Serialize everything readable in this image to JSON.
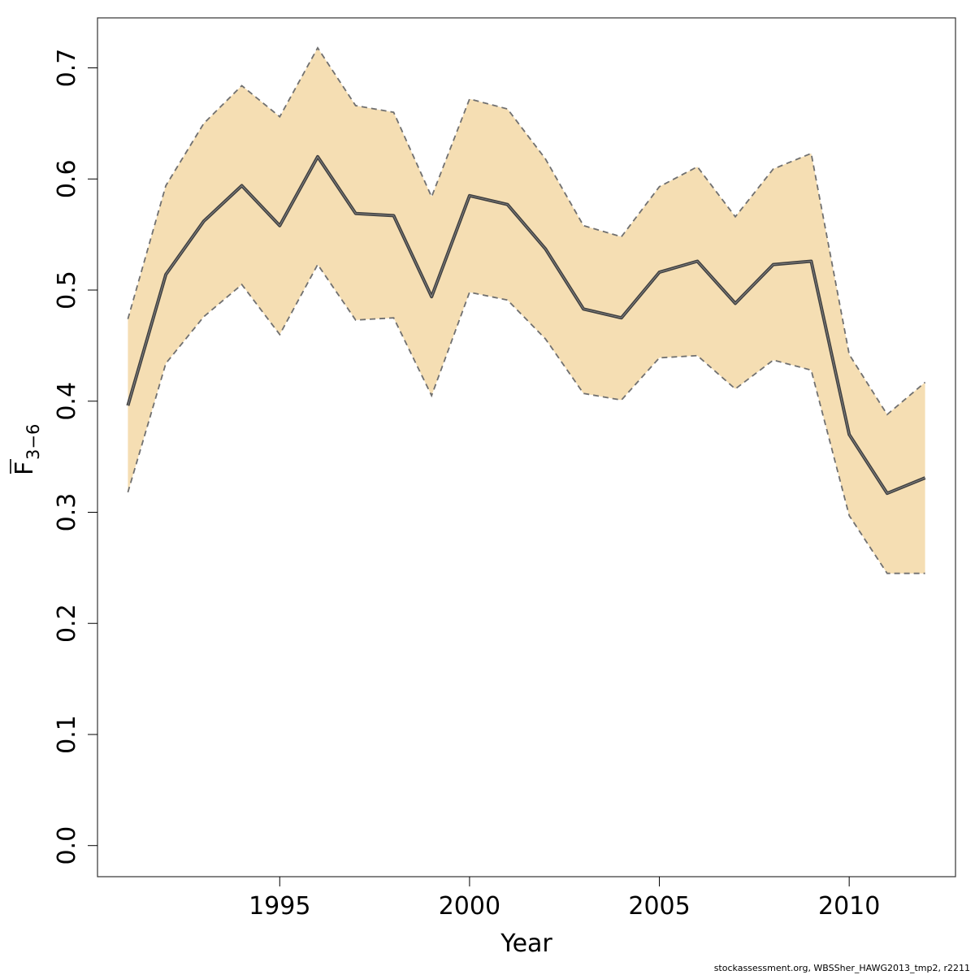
{
  "chart_data": {
    "type": "line",
    "title": "",
    "xlabel": "Year",
    "ylabel": {
      "main": "F",
      "subscript": "3−6"
    },
    "xlim": [
      1990.2,
      2012.8
    ],
    "ylim": [
      -0.028,
      0.745
    ],
    "xticks": [
      {
        "value": 1995,
        "label": "1995"
      },
      {
        "value": 2000,
        "label": "2000"
      },
      {
        "value": 2005,
        "label": "2005"
      },
      {
        "value": 2010,
        "label": "2010"
      }
    ],
    "yticks": [
      {
        "value": 0.0,
        "label": "0.0"
      },
      {
        "value": 0.1,
        "label": "0.1"
      },
      {
        "value": 0.2,
        "label": "0.2"
      },
      {
        "value": 0.3,
        "label": "0.3"
      },
      {
        "value": 0.4,
        "label": "0.4"
      },
      {
        "value": 0.5,
        "label": "0.5"
      },
      {
        "value": 0.6,
        "label": "0.6"
      },
      {
        "value": 0.7,
        "label": "0.7"
      }
    ],
    "x": [
      1991,
      1992,
      1993,
      1994,
      1995,
      1996,
      1997,
      1998,
      1999,
      2000,
      2001,
      2002,
      2003,
      2004,
      2005,
      2006,
      2007,
      2008,
      2009,
      2010,
      2011,
      2012
    ],
    "series": [
      {
        "role": "estimate",
        "values": [
          0.396,
          0.514,
          0.562,
          0.594,
          0.558,
          0.62,
          0.569,
          0.567,
          0.494,
          0.585,
          0.577,
          0.537,
          0.483,
          0.475,
          0.516,
          0.526,
          0.488,
          0.523,
          0.526,
          0.37,
          0.317,
          0.331
        ]
      },
      {
        "role": "upper",
        "values": [
          0.474,
          0.594,
          0.65,
          0.684,
          0.656,
          0.718,
          0.666,
          0.66,
          0.584,
          0.672,
          0.663,
          0.618,
          0.558,
          0.548,
          0.593,
          0.611,
          0.566,
          0.609,
          0.623,
          0.442,
          0.388,
          0.417
        ]
      },
      {
        "role": "lower",
        "values": [
          0.318,
          0.434,
          0.476,
          0.505,
          0.46,
          0.523,
          0.473,
          0.475,
          0.405,
          0.498,
          0.491,
          0.456,
          0.407,
          0.401,
          0.439,
          0.441,
          0.411,
          0.437,
          0.428,
          0.297,
          0.245,
          0.245
        ]
      }
    ],
    "colors": {
      "band_fill": "#f5deb3",
      "band_line": "#707070",
      "estimate_line": "#404040",
      "axis": "#000000"
    },
    "grid": false,
    "legend": "none"
  },
  "footer": "stockassessment.org, WBSSher_HAWG2013_tmp2, r2211"
}
